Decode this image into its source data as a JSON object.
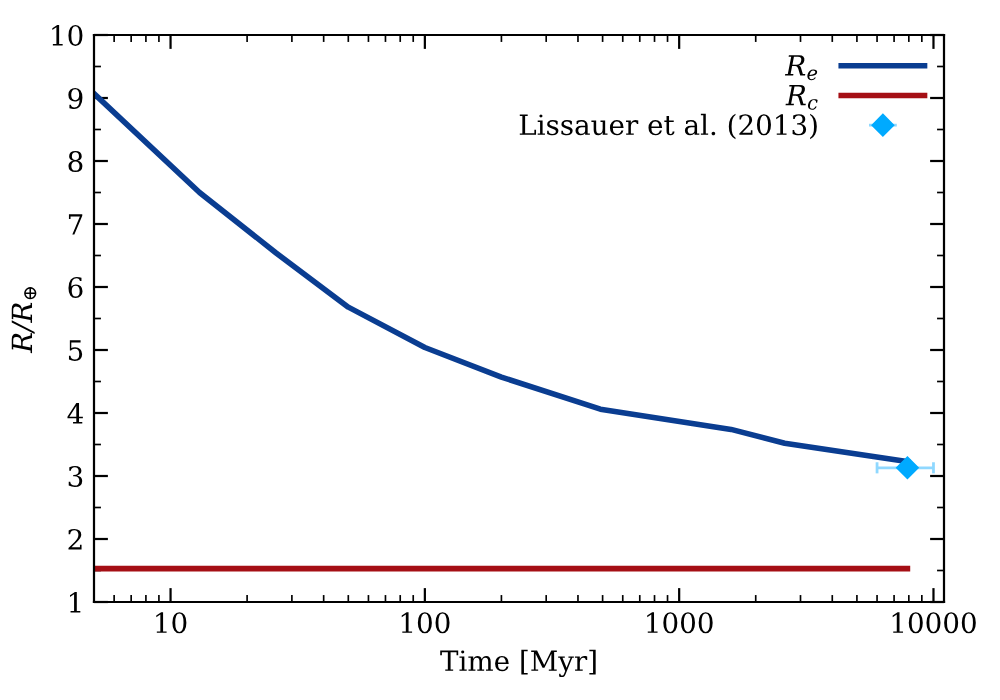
{
  "chart_data": {
    "type": "line",
    "xlabel": "Time [Myr]",
    "ylabel": "R/R$_{⊕}$",
    "log": "x",
    "xlim": [
      5,
      11000
    ],
    "xticks": [
      10,
      100,
      1000,
      10000
    ],
    "ylim": [
      1,
      10
    ],
    "yticks": [
      1,
      2,
      3,
      4,
      5,
      6,
      7,
      8,
      9,
      10
    ],
    "grid": false,
    "legend": "top right",
    "series": [
      {
        "name": "R$_{e}$",
        "color": "#0a3d91",
        "x": [
          5,
          13,
          26,
          50,
          100,
          200,
          490,
          1600,
          2600,
          7900
        ],
        "values": [
          9.07,
          7.5,
          6.54,
          5.68,
          5.04,
          4.57,
          4.06,
          3.74,
          3.52,
          3.23
        ]
      },
      {
        "name": "R$_{c}$",
        "color": "#a50f15",
        "x": [
          5,
          7900
        ],
        "values": [
          1.53,
          1.53
        ]
      },
      {
        "name": "Lissauer et al. (2013)",
        "type": "scatter",
        "color": "#00aaff",
        "marker": "diamond",
        "x": [
          7900
        ],
        "values": [
          3.13
        ],
        "xerrors": [
          [
            6000,
            10000
          ]
        ]
      }
    ]
  }
}
